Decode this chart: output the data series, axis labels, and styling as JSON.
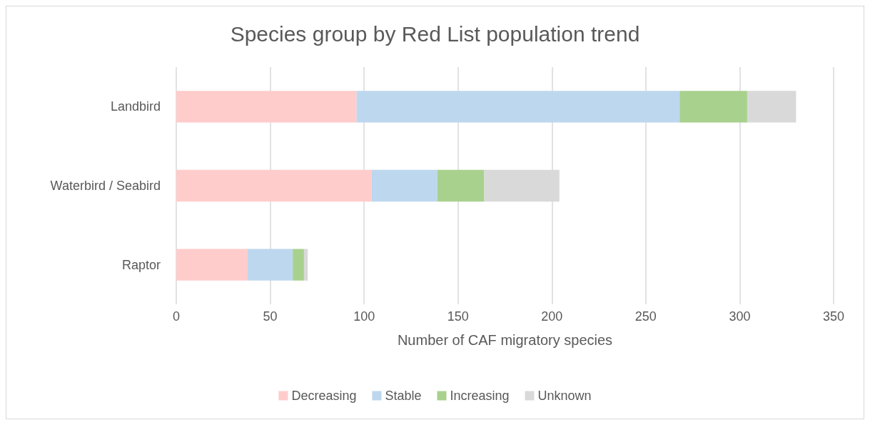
{
  "chart_data": {
    "type": "bar",
    "orientation": "horizontal",
    "stacked": true,
    "title": "Species group by Red List population trend",
    "xlabel": "Number of CAF migratory species",
    "categories": [
      "Landbird",
      "Waterbird / Seabird",
      "Raptor"
    ],
    "series": [
      {
        "name": "Decreasing",
        "color": "#ffcccc",
        "values": [
          96,
          104,
          38
        ]
      },
      {
        "name": "Stable",
        "color": "#bdd7ee",
        "values": [
          172,
          35,
          24
        ]
      },
      {
        "name": "Increasing",
        "color": "#a9d18e",
        "values": [
          36,
          25,
          6
        ]
      },
      {
        "name": "Unknown",
        "color": "#d9d9d9",
        "values": [
          26,
          40,
          2
        ]
      }
    ],
    "xlim": [
      0,
      350
    ],
    "xticks": [
      0,
      50,
      100,
      150,
      200,
      250,
      300,
      350
    ],
    "grid": "x",
    "legend": "bottom"
  }
}
